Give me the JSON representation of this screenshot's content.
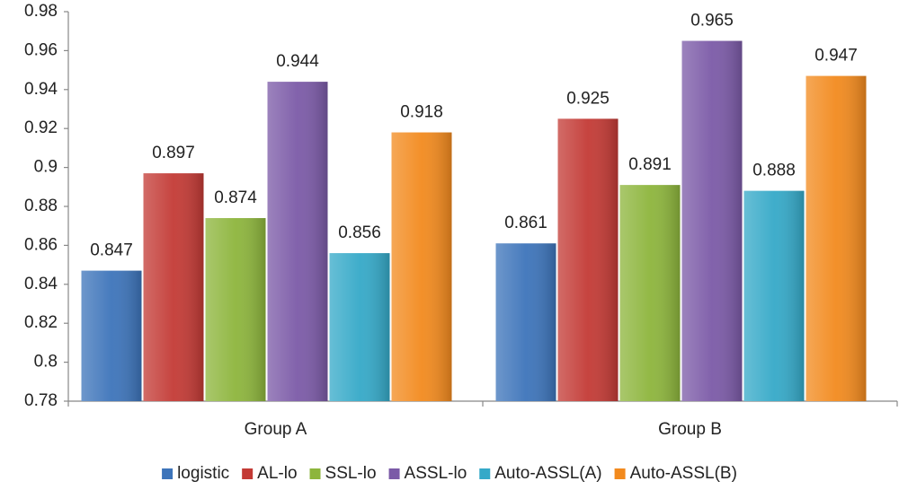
{
  "chart_data": {
    "type": "bar",
    "categories": [
      "Group A",
      "Group B"
    ],
    "series": [
      {
        "name": "logistic",
        "color": "#3d74ba",
        "values": [
          0.847,
          0.861
        ]
      },
      {
        "name": "AL-lo",
        "color": "#c33a35",
        "values": [
          0.897,
          0.925
        ]
      },
      {
        "name": "SSL-lo",
        "color": "#8db53c",
        "values": [
          0.874,
          0.891
        ]
      },
      {
        "name": "ASSL-lo",
        "color": "#7b5aa7",
        "values": [
          0.944,
          0.965
        ]
      },
      {
        "name": "Auto-ASSL(A)",
        "color": "#35a9c8",
        "values": [
          0.856,
          0.888
        ]
      },
      {
        "name": "Auto-ASSL(B)",
        "color": "#f28a1e",
        "values": [
          0.918,
          0.947
        ]
      }
    ],
    "ylim": [
      0.78,
      0.98
    ],
    "yticks": [
      0.78,
      0.8,
      0.82,
      0.84,
      0.86,
      0.88,
      0.9,
      0.92,
      0.94,
      0.96,
      0.98
    ],
    "legend": "bottom"
  }
}
